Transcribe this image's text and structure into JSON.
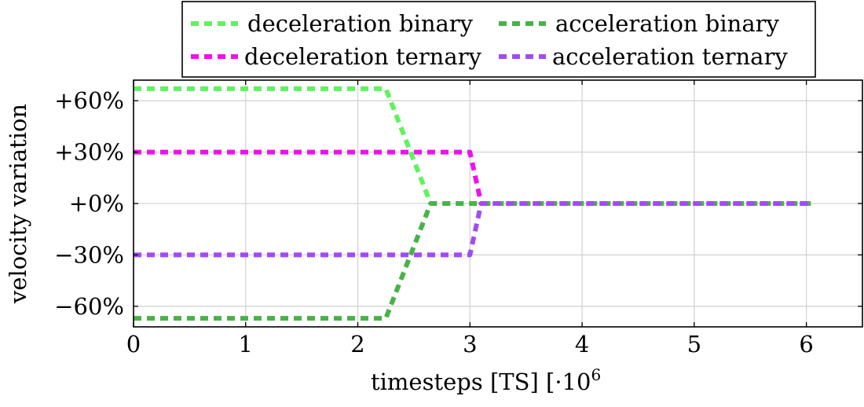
{
  "chart_data": {
    "type": "line",
    "xlabel": "timesteps [TS] [·10",
    "xlabel_exp": "6",
    "ylabel": "velocity variation",
    "xlim": [
      0,
      6.5
    ],
    "ylim": [
      -72,
      72
    ],
    "x_ticks": [
      0,
      1,
      2,
      3,
      4,
      5,
      6
    ],
    "x_tick_labels": [
      "0",
      "1",
      "2",
      "3",
      "4",
      "5",
      "6"
    ],
    "y_ticks": [
      60,
      30,
      0,
      -30,
      -60
    ],
    "y_tick_labels": [
      "+60%",
      "+30%",
      "+0%",
      "−30%",
      "−60%"
    ],
    "grid": true,
    "legend_position": "top-center, above plot",
    "series": [
      {
        "name": "deceleration binary",
        "color": "#5ff25f",
        "x": [
          0,
          2.25,
          2.65,
          6.05
        ],
        "y": [
          67,
          67,
          0,
          0
        ]
      },
      {
        "name": "acceleration binary",
        "color": "#47b347",
        "x": [
          0,
          2.25,
          2.65,
          6.05
        ],
        "y": [
          -67,
          -67,
          0,
          0
        ]
      },
      {
        "name": "deceleration ternary",
        "color": "#ee11ee",
        "x": [
          0,
          3.0,
          3.1,
          6.05
        ],
        "y": [
          30,
          30,
          0,
          0
        ]
      },
      {
        "name": "acceleration ternary",
        "color": "#a24bf2",
        "x": [
          0,
          3.0,
          3.1,
          6.05
        ],
        "y": [
          -30,
          -30,
          0,
          0
        ]
      }
    ]
  }
}
